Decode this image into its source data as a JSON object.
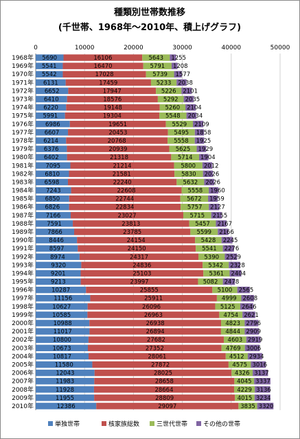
{
  "chart_data": {
    "type": "bar",
    "orientation": "horizontal",
    "stacked": true,
    "title": "種類別世帯数推移",
    "subtitle": "(千世帯、1968年〜2010年、積上げグラフ)",
    "xlim": [
      0,
      50000
    ],
    "xticks": [
      "0",
      "10000",
      "20000",
      "30000",
      "40000",
      "50000"
    ],
    "grid": true,
    "legend_position": "bottom",
    "categories": [
      "1968年",
      "1969年",
      "1970年",
      "1971年",
      "1972年",
      "1973年",
      "1974年",
      "1975年",
      "1976年",
      "1977年",
      "1978年",
      "1979年",
      "1980年",
      "1981年",
      "1982年",
      "1983年",
      "1984年",
      "1985年",
      "1986年",
      "1987年",
      "1988年",
      "1989年",
      "1990年",
      "1991年",
      "1992年",
      "1993年",
      "1994年",
      "1995年",
      "1996年",
      "1997年",
      "1998年",
      "1999年",
      "2000年",
      "2001年",
      "2002年",
      "2003年",
      "2004年",
      "2005年",
      "2006年",
      "2007年",
      "2008年",
      "2009年",
      "2010年"
    ],
    "series": [
      {
        "name": "単独世帯",
        "color": "#4f81bd",
        "values": [
          5690,
          5541,
          5542,
          6131,
          6652,
          6410,
          6220,
          5991,
          6986,
          6607,
          6214,
          6376,
          6402,
          7095,
          6810,
          6598,
          7243,
          6850,
          6826,
          7166,
          7591,
          7866,
          8446,
          8597,
          8974,
          9320,
          9201,
          9213,
          10287,
          11156,
          10627,
          10585,
          10988,
          11017,
          10800,
          10673,
          10817,
          11580,
          12043,
          11983,
          11928,
          11955,
          12386
        ]
      },
      {
        "name": "核家族総数",
        "color": "#c0504d",
        "values": [
          16106,
          16470,
          17028,
          17459,
          17947,
          18576,
          19148,
          19304,
          19651,
          20453,
          20768,
          20939,
          21318,
          21214,
          21581,
          22240,
          22608,
          22744,
          22834,
          23027,
          23813,
          23785,
          24154,
          24150,
          24317,
          24836,
          25103,
          23997,
          25855,
          25911,
          26096,
          26963,
          26938,
          26894,
          27682,
          27352,
          28061,
          27872,
          28025,
          28658,
          28664,
          28809,
          29097
        ]
      },
      {
        "name": "三世代世帯",
        "color": "#9bbb59",
        "values": [
          5643,
          5791,
          5739,
          5233,
          5226,
          5292,
          5260,
          5548,
          5529,
          5495,
          5558,
          5625,
          5714,
          5800,
          5830,
          5632,
          5558,
          5672,
          5757,
          5715,
          5457,
          5599,
          5428,
          5541,
          5390,
          5342,
          5361,
          5082,
          5100,
          4999,
          5125,
          4754,
          4823,
          4844,
          4603,
          4769,
          4512,
          4575,
          4326,
          4045,
          4229,
          4015,
          3835
        ]
      },
      {
        "name": "その他の世帯",
        "color": "#8064a2",
        "values": [
          1255,
          1208,
          1577,
          2038,
          2101,
          2035,
          2104,
          2034,
          2109,
          1858,
          1925,
          1929,
          1904,
          2012,
          2026,
          2026,
          1960,
          1959,
          2127,
          2155,
          2167,
          2166,
          2245,
          2276,
          2529,
          2328,
          2404,
          2478,
          2565,
          2608,
          2646,
          2621,
          2796,
          2909,
          2919,
          3006,
          2934,
          3016,
          3137,
          3337,
          3136,
          3234,
          3320
        ]
      }
    ]
  }
}
